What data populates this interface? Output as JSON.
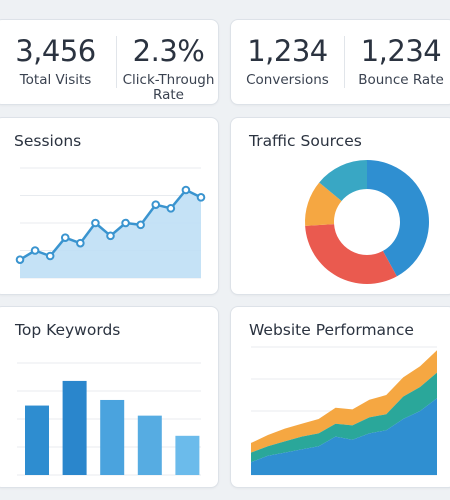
{
  "stats": {
    "total_visits": {
      "value": "3,456",
      "label": "Total Visits"
    },
    "ctr": {
      "value": "2.3%",
      "label_line1": "Click-Through",
      "label_line2": "Rate"
    },
    "conversions": {
      "value": "1,234",
      "label": "Conversions"
    },
    "bounce_rate": {
      "value": "1,234",
      "label": "Bounce Rate"
    }
  },
  "sessions": {
    "title": "Sessions"
  },
  "traffic_sources": {
    "title": "Traffic Sources"
  },
  "top_keywords": {
    "title": "Top Keywords"
  },
  "website_performance": {
    "title": "Website Performance"
  },
  "colors": {
    "line": "#3a94cf",
    "area": "#bfdff5",
    "grid": "#e8ebef",
    "blue": "#2f8fd1",
    "orange": "#f5a742",
    "red": "#ea5a4f",
    "teal": "#39a7c4",
    "green": "#2aa79a"
  },
  "chart_data": [
    {
      "type": "line",
      "x": [
        1,
        2,
        3,
        4,
        5,
        6,
        7,
        8,
        9,
        10,
        11,
        12,
        13
      ],
      "series": [
        {
          "values": [
            10,
            15,
            12,
            22,
            19,
            30,
            23,
            30,
            29,
            40,
            38,
            48,
            44
          ]
        }
      ],
      "ylim": [
        0,
        60
      ],
      "grid": true
    },
    {
      "type": "pie",
      "donut": true,
      "values": [
        42,
        32,
        12,
        14
      ]
    },
    {
      "type": "bar",
      "values": [
        62,
        84,
        67,
        53,
        35
      ],
      "ylim": [
        0,
        100
      ],
      "grid": true
    },
    {
      "type": "area",
      "stacked": true,
      "x": [
        0,
        1,
        2,
        3,
        4,
        5,
        6,
        7,
        8,
        9,
        10,
        11
      ],
      "series": [
        {
          "values": [
            8,
            12,
            14,
            16,
            18,
            24,
            22,
            26,
            28,
            35,
            40,
            48
          ]
        },
        {
          "values": [
            6,
            6,
            7,
            8,
            8,
            8,
            9,
            10,
            10,
            14,
            15,
            16
          ]
        },
        {
          "values": [
            6,
            7,
            8,
            8,
            9,
            10,
            10,
            11,
            12,
            12,
            13,
            14
          ]
        }
      ],
      "ylim": [
        0,
        80
      ],
      "grid": true
    }
  ]
}
